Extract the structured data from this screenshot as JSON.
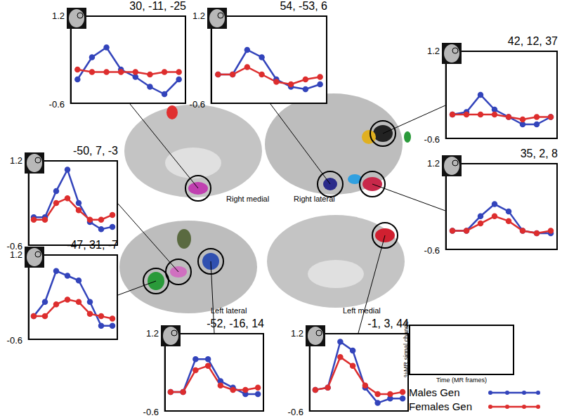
{
  "chart_data": [
    {
      "type": "line",
      "title": "30, -11, -25",
      "x": [
        1,
        2,
        3,
        4,
        5,
        6,
        7,
        8
      ],
      "xlim": [
        0.5,
        8.5
      ],
      "ylim": [
        -0.6,
        1.2
      ],
      "yticks": [
        1.2,
        -0.6
      ],
      "tick_labels": "y",
      "grid": false,
      "marker": "circle",
      "series": [
        {
          "name": "Males Gen",
          "color": "#3344bb",
          "values": [
            -0.1,
            0.35,
            0.55,
            0.1,
            -0.05,
            -0.25,
            -0.4,
            -0.1
          ]
        },
        {
          "name": "Females Gen",
          "color": "#dd2e2e",
          "values": [
            0.1,
            0.05,
            0.05,
            0.05,
            0.05,
            0.0,
            0.05,
            0.05
          ]
        }
      ]
    },
    {
      "type": "line",
      "title": "54, -53, 6",
      "x": [
        1,
        2,
        3,
        4,
        5,
        6,
        7,
        8
      ],
      "xlim": [
        0.5,
        8.5
      ],
      "ylim": [
        -0.6,
        1.2
      ],
      "yticks": [
        1.2,
        -0.6
      ],
      "tick_labels": "y",
      "grid": false,
      "marker": "circle",
      "series": [
        {
          "name": "Males Gen",
          "color": "#3344bb",
          "values": [
            0.0,
            0.0,
            0.5,
            0.35,
            -0.1,
            -0.25,
            -0.3,
            -0.2
          ]
        },
        {
          "name": "Females Gen",
          "color": "#dd2e2e",
          "values": [
            0.0,
            0.0,
            0.15,
            0.0,
            -0.15,
            -0.2,
            -0.1,
            -0.05
          ]
        }
      ]
    },
    {
      "type": "line",
      "title": "42, 12, 37",
      "x": [
        1,
        2,
        3,
        4,
        5,
        6,
        7,
        8
      ],
      "xlim": [
        0.5,
        8.5
      ],
      "ylim": [
        -0.6,
        1.2
      ],
      "yticks": [
        1.2,
        -0.6
      ],
      "tick_labels": "y",
      "grid": false,
      "marker": "circle",
      "series": [
        {
          "name": "Males Gen",
          "color": "#3344bb",
          "values": [
            -0.1,
            -0.05,
            0.3,
            0.0,
            -0.15,
            -0.3,
            -0.3,
            -0.15
          ]
        },
        {
          "name": "Females Gen",
          "color": "#dd2e2e",
          "values": [
            -0.1,
            -0.1,
            -0.1,
            -0.1,
            -0.15,
            -0.2,
            -0.15,
            -0.15
          ]
        }
      ]
    },
    {
      "type": "line",
      "title": "35, 2, 8",
      "x": [
        1,
        2,
        3,
        4,
        5,
        6,
        7,
        8
      ],
      "xlim": [
        0.5,
        8.5
      ],
      "ylim": [
        -0.6,
        1.2
      ],
      "yticks": [
        1.2,
        -0.6
      ],
      "tick_labels": "y",
      "grid": false,
      "marker": "circle",
      "series": [
        {
          "name": "Males Gen",
          "color": "#3344bb",
          "values": [
            -0.2,
            -0.2,
            0.1,
            0.35,
            0.2,
            -0.2,
            -0.25,
            -0.25
          ]
        },
        {
          "name": "Females Gen",
          "color": "#dd2e2e",
          "values": [
            -0.2,
            -0.2,
            -0.05,
            0.1,
            0.0,
            -0.2,
            -0.25,
            -0.2
          ]
        }
      ]
    },
    {
      "type": "line",
      "title": "-50, 7, -3",
      "x": [
        1,
        2,
        3,
        4,
        5,
        6,
        7,
        8
      ],
      "xlim": [
        0.5,
        8.5
      ],
      "ylim": [
        -0.6,
        1.2
      ],
      "yticks": [
        1.2,
        -0.6
      ],
      "tick_labels": "y",
      "grid": false,
      "marker": "circle",
      "series": [
        {
          "name": "Males Gen",
          "color": "#3344bb",
          "values": [
            0.0,
            0.0,
            0.55,
            1.0,
            0.3,
            -0.1,
            -0.25,
            -0.2
          ]
        },
        {
          "name": "Females Gen",
          "color": "#dd2e2e",
          "values": [
            -0.05,
            -0.05,
            0.3,
            0.4,
            0.15,
            -0.05,
            -0.05,
            0.05
          ]
        }
      ]
    },
    {
      "type": "line",
      "title": "-47, 31, -7",
      "x": [
        1,
        2,
        3,
        4,
        5,
        6,
        7,
        8
      ],
      "xlim": [
        0.5,
        8.5
      ],
      "ylim": [
        -0.6,
        1.2
      ],
      "yticks": [
        1.2,
        -0.6
      ],
      "tick_labels": "y",
      "grid": false,
      "marker": "circle",
      "series": [
        {
          "name": "Males Gen",
          "color": "#3344bb",
          "values": [
            -0.1,
            0.2,
            0.85,
            0.75,
            0.65,
            0.2,
            -0.3,
            -0.3
          ]
        },
        {
          "name": "Females Gen",
          "color": "#dd2e2e",
          "values": [
            -0.1,
            -0.1,
            0.15,
            0.25,
            0.2,
            -0.05,
            -0.1,
            -0.15
          ]
        }
      ]
    },
    {
      "type": "line",
      "title": "-52, -16, 14",
      "x": [
        1,
        2,
        3,
        4,
        5,
        6,
        7,
        8
      ],
      "xlim": [
        0.5,
        8.5
      ],
      "ylim": [
        -0.6,
        1.2
      ],
      "yticks": [
        1.2,
        -0.6
      ],
      "tick_labels": "y",
      "grid": false,
      "marker": "circle",
      "series": [
        {
          "name": "Males Gen",
          "color": "#3344bb",
          "values": [
            -0.15,
            -0.15,
            0.6,
            0.6,
            0.1,
            -0.05,
            -0.2,
            -0.2
          ]
        },
        {
          "name": "Females Gen",
          "color": "#dd2e2e",
          "values": [
            -0.15,
            -0.15,
            0.35,
            0.45,
            0.0,
            -0.1,
            -0.1,
            -0.05
          ]
        }
      ]
    },
    {
      "type": "line",
      "title": "-1, 3, 44",
      "x": [
        1,
        2,
        3,
        4,
        5,
        6,
        7,
        8
      ],
      "xlim": [
        0.5,
        8.5
      ],
      "ylim": [
        -0.6,
        1.2
      ],
      "yticks": [
        1.2,
        -0.6
      ],
      "tick_labels": "y",
      "grid": false,
      "marker": "circle",
      "series": [
        {
          "name": "Males Gen",
          "color": "#3344bb",
          "values": [
            -0.1,
            -0.05,
            1.0,
            0.8,
            -0.05,
            -0.4,
            -0.3,
            -0.3
          ]
        },
        {
          "name": "Females Gen",
          "color": "#dd2e2e",
          "values": [
            -0.1,
            -0.05,
            0.65,
            0.45,
            0.0,
            -0.2,
            -0.2,
            -0.15
          ]
        }
      ]
    }
  ],
  "brain_labels": [
    "Right medial",
    "Right lateral",
    "Left lateral",
    "Left medial"
  ],
  "key": {
    "y_label": "%MR signal change",
    "x_label": "Time (MR frames)"
  }
}
